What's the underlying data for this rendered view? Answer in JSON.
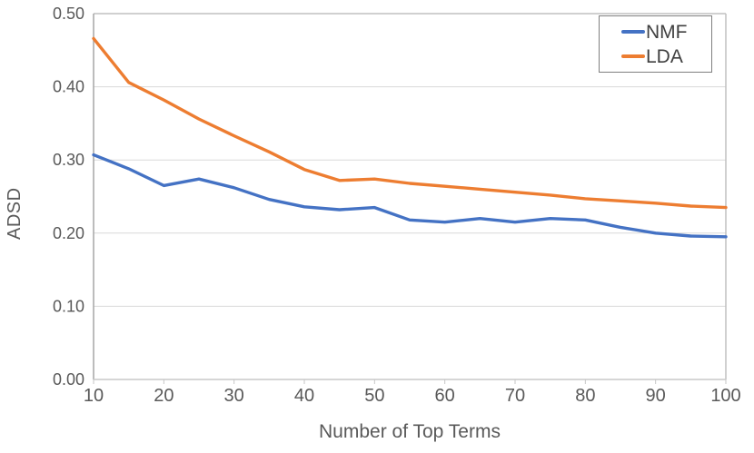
{
  "chart_data": {
    "type": "line",
    "title": "",
    "xlabel": "Number of Top Terms",
    "ylabel": "ADSD",
    "x": [
      10,
      15,
      20,
      25,
      30,
      35,
      40,
      45,
      50,
      55,
      60,
      65,
      70,
      75,
      80,
      85,
      90,
      95,
      100
    ],
    "series": [
      {
        "name": "NMF",
        "color": "#4472C4",
        "values": [
          0.307,
          0.288,
          0.265,
          0.274,
          0.262,
          0.246,
          0.236,
          0.232,
          0.235,
          0.218,
          0.215,
          0.22,
          0.215,
          0.22,
          0.218,
          0.208,
          0.2,
          0.196,
          0.195
        ]
      },
      {
        "name": "LDA",
        "color": "#ED7D31",
        "values": [
          0.466,
          0.406,
          0.382,
          0.356,
          0.333,
          0.311,
          0.287,
          0.272,
          0.274,
          0.268,
          0.264,
          0.26,
          0.256,
          0.252,
          0.247,
          0.244,
          0.241,
          0.237,
          0.235
        ]
      }
    ],
    "xlim": [
      10,
      100
    ],
    "ylim": [
      0,
      0.5
    ],
    "x_ticks": [
      10,
      20,
      30,
      40,
      50,
      60,
      70,
      80,
      90,
      100
    ],
    "y_ticks": [
      0,
      0.1,
      0.2,
      0.3,
      0.4,
      0.5
    ],
    "y_tick_labels": [
      "0.00",
      "0.10",
      "0.20",
      "0.30",
      "0.40",
      "0.50"
    ],
    "grid": true,
    "legend_position": "top-right"
  },
  "colors": {
    "grid_line": "#D9D9D9",
    "plot_border": "#C0C0C0",
    "x_axis_line": "#C9C9C9",
    "y_axis_line": "#A6A6A6",
    "tick_mark": "#C6C6C6",
    "axis_text": "#595959",
    "legend_border": "#7F7F7F",
    "legend_text": "#404040"
  }
}
